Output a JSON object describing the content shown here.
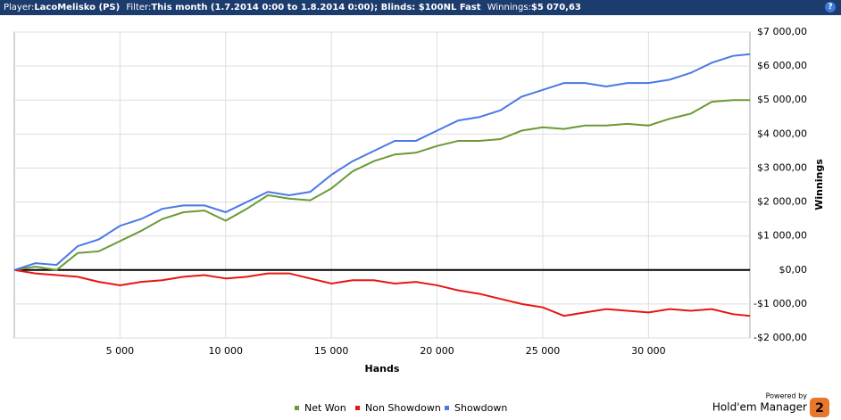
{
  "header": {
    "player_label": "Player:",
    "player": "LacoMelisko (PS)",
    "filter_label": "Filter:",
    "filter": "This month (1.7.2014 0:00 to 1.8.2014 0:00); Blinds: $100NL Fast",
    "winnings_label": "Winnings:",
    "winnings": "$5 070,63",
    "help": "?"
  },
  "chart_data": {
    "type": "line",
    "x_label": "Hands",
    "y_label": "Winnings",
    "x": [
      0,
      1000,
      2000,
      3000,
      4000,
      5000,
      6000,
      7000,
      8000,
      9000,
      10000,
      11000,
      12000,
      13000,
      14000,
      15000,
      16000,
      17000,
      18000,
      19000,
      20000,
      21000,
      22000,
      23000,
      24000,
      25000,
      26000,
      27000,
      28000,
      29000,
      30000,
      31000,
      32000,
      33000,
      34000,
      34800
    ],
    "series": [
      {
        "name": "Net Won",
        "color": "#6a9a35",
        "values": [
          0,
          100,
          0,
          500,
          550,
          850,
          1150,
          1500,
          1700,
          1750,
          1450,
          1800,
          2200,
          2100,
          2050,
          2400,
          2900,
          3200,
          3400,
          3450,
          3650,
          3800,
          3800,
          3850,
          4100,
          4200,
          4150,
          4250,
          4250,
          4300,
          4250,
          4450,
          4600,
          4950,
          5000,
          5000
        ]
      },
      {
        "name": "Non Showdown",
        "color": "#e8150f",
        "values": [
          0,
          -100,
          -150,
          -200,
          -350,
          -450,
          -350,
          -300,
          -200,
          -150,
          -250,
          -200,
          -100,
          -100,
          -250,
          -400,
          -300,
          -300,
          -400,
          -350,
          -450,
          -600,
          -700,
          -850,
          -1000,
          -1100,
          -1350,
          -1250,
          -1150,
          -1200,
          -1250,
          -1150,
          -1200,
          -1150,
          -1300,
          -1350
        ]
      },
      {
        "name": "Showdown",
        "color": "#4a78e6",
        "values": [
          0,
          200,
          150,
          700,
          900,
          1300,
          1500,
          1800,
          1900,
          1900,
          1700,
          2000,
          2300,
          2200,
          2300,
          2800,
          3200,
          3500,
          3800,
          3800,
          4100,
          4400,
          4500,
          4700,
          5100,
          5300,
          5500,
          5500,
          5400,
          5500,
          5500,
          5600,
          5800,
          6100,
          6300,
          6350
        ]
      }
    ],
    "xlim": [
      0,
      34800
    ],
    "xticks": [
      {
        "value": 5000,
        "label": "5 000"
      },
      {
        "value": 10000,
        "label": "10 000"
      },
      {
        "value": 15000,
        "label": "15 000"
      },
      {
        "value": 20000,
        "label": "20 000"
      },
      {
        "value": 25000,
        "label": "25 000"
      },
      {
        "value": 30000,
        "label": "30 000"
      }
    ],
    "ylim": [
      -2000,
      7000
    ],
    "yticks": [
      {
        "value": 7000,
        "label": "$7 000,00"
      },
      {
        "value": 6000,
        "label": "$6 000,00"
      },
      {
        "value": 5000,
        "label": "$5 000,00"
      },
      {
        "value": 4000,
        "label": "$4 000,00"
      },
      {
        "value": 3000,
        "label": "$3 000,00"
      },
      {
        "value": 2000,
        "label": "$2 000,00"
      },
      {
        "value": 1000,
        "label": "$1 000,00"
      },
      {
        "value": 0,
        "label": "$0,00"
      },
      {
        "value": -1000,
        "label": "-$1 000,00"
      },
      {
        "value": -2000,
        "label": "-$2 000,00"
      }
    ],
    "grid": true
  },
  "footer": {
    "powered": "Powered by",
    "brand": "Hold'em Manager",
    "badge": "2"
  }
}
